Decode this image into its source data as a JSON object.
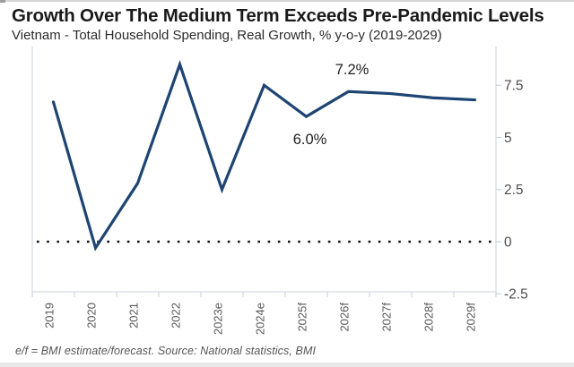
{
  "header": {
    "title": "Growth Over The Medium Term Exceeds Pre-Pandemic Levels",
    "subtitle": "Vietnam - Total Household Spending, Real Growth, % y-o-y (2019-2029)"
  },
  "chart_data": {
    "type": "line",
    "title": "Growth Over The Medium Term Exceeds Pre-Pandemic Levels",
    "subtitle": "Vietnam - Total Household Spending, Real Growth, % y-o-y (2019-2029)",
    "categories": [
      "2019",
      "2020",
      "2021",
      "2022",
      "2023e",
      "2024e",
      "2025f",
      "2026f",
      "2027f",
      "2028f",
      "2029f"
    ],
    "values": [
      6.7,
      -0.3,
      2.8,
      8.5,
      2.5,
      7.5,
      6.0,
      7.2,
      7.1,
      6.9,
      6.8
    ],
    "xlabel": "",
    "ylabel": "",
    "y_ticks": [
      -2.5,
      0,
      2.5,
      5,
      7.5
    ],
    "ylim": [
      -2.5,
      9.25
    ],
    "grid": false,
    "legend": "none",
    "zero_line_style": "dotted",
    "annotations": [
      {
        "text": "6.0%",
        "category": "2025f",
        "position": "below"
      },
      {
        "text": "7.2%",
        "category": "2026f",
        "position": "above"
      }
    ]
  },
  "colors": {
    "line": "#1d4472",
    "axis": "#d7dce1",
    "tick": "#c9d4df",
    "x_label": "#595959",
    "y_label": "#4d4d4d",
    "zero_dotted": "#151515",
    "annotation": "#1f1f1f",
    "title": "#1a1a1a",
    "subtitle": "#2b2b2b",
    "footnote": "#555555"
  },
  "footer": {
    "note": "e/f = BMI estimate/forecast. Source: National statistics, BMI"
  }
}
